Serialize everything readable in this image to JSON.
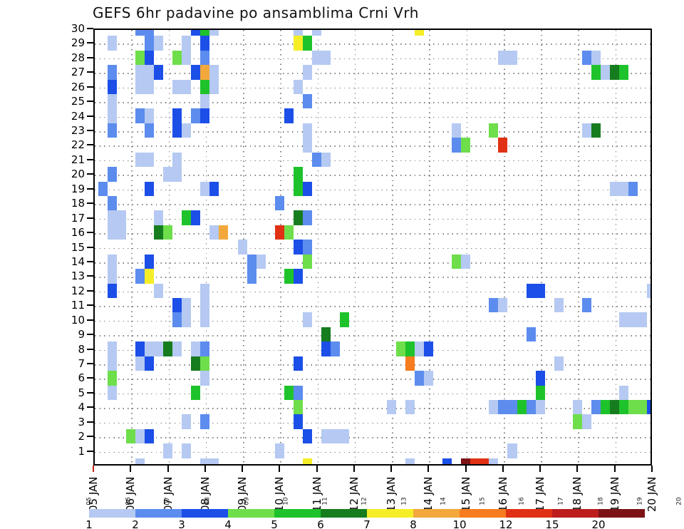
{
  "title": "GEFS 6hr padavine po ansamblima Crni Vrh",
  "y_axis": {
    "labels": [
      "1",
      "2",
      "3",
      "4",
      "5",
      "6",
      "7",
      "8",
      "9",
      "10",
      "11",
      "12",
      "13",
      "14",
      "15",
      "16",
      "17",
      "18",
      "19",
      "20",
      "21",
      "22",
      "23",
      "24",
      "25",
      "26",
      "27",
      "28",
      "29",
      "30"
    ]
  },
  "x_axis": {
    "labels": [
      "05 JAN",
      "06 JAN",
      "07 JAN",
      "08 JAN",
      "09 JAN",
      "10 JAN",
      "11 JAN",
      "12 JAN",
      "13 JAN",
      "14 JAN",
      "15 JAN",
      "16 JAN",
      "17 JAN",
      "18 JAN",
      "19 JAN",
      "20 JAN"
    ],
    "mini_labels": [
      "05",
      "06",
      "07",
      "08",
      "09",
      "10",
      "11",
      "12",
      "13",
      "14",
      "15",
      "16",
      "17",
      "18",
      "19",
      "20"
    ],
    "first_tick_color": "#cc2211"
  },
  "legend": {
    "values": [
      "1",
      "2",
      "3",
      "4",
      "5",
      "6",
      "7",
      "8",
      "10",
      "12",
      "15",
      "20"
    ],
    "colors": [
      "#b5c9f2",
      "#5c8cee",
      "#1c4fe8",
      "#6ede4b",
      "#1ec32b",
      "#167d1f",
      "#f5ee27",
      "#f3a83c",
      "#f67c1f",
      "#e03114",
      "#bd1d1d",
      "#7c1315"
    ]
  },
  "chart_data": {
    "type": "heatmap",
    "title": "GEFS 6hr padavine po ansamblima Crni Vrh",
    "x": "time, 6-hour steps, 05 JAN to 20 JAN (4 columns per day, cols 0-60)",
    "y": "ensemble member 0 (bottom, clipped) to 30 (top, clipped)",
    "value_scale_mm": [
      1,
      2,
      3,
      4,
      5,
      6,
      7,
      8,
      10,
      12,
      15,
      20
    ],
    "grid": {
      "n_cols": 61,
      "n_rows": 31,
      "days": 15,
      "gridlines": "dotted at every member row and every day"
    },
    "cells": [
      [
        30,
        5,
        2
      ],
      [
        30,
        6,
        2
      ],
      [
        30,
        11,
        3
      ],
      [
        30,
        12,
        5
      ],
      [
        30,
        13,
        1
      ],
      [
        30,
        22,
        1
      ],
      [
        30,
        24,
        1
      ],
      [
        30,
        35,
        7
      ],
      [
        29,
        2,
        1
      ],
      [
        29,
        6,
        2
      ],
      [
        29,
        7,
        1
      ],
      [
        29,
        10,
        1
      ],
      [
        29,
        12,
        3
      ],
      [
        29,
        22,
        7
      ],
      [
        29,
        23,
        5
      ],
      [
        28,
        5,
        4
      ],
      [
        28,
        6,
        3
      ],
      [
        28,
        9,
        4
      ],
      [
        28,
        10,
        1
      ],
      [
        28,
        12,
        2
      ],
      [
        28,
        24,
        1
      ],
      [
        28,
        25,
        1
      ],
      [
        28,
        44,
        1
      ],
      [
        28,
        45,
        1
      ],
      [
        28,
        53,
        2
      ],
      [
        28,
        54,
        1
      ],
      [
        27,
        2,
        2
      ],
      [
        27,
        5,
        1
      ],
      [
        27,
        6,
        1
      ],
      [
        27,
        7,
        3
      ],
      [
        27,
        11,
        3
      ],
      [
        27,
        12,
        8
      ],
      [
        27,
        13,
        1
      ],
      [
        27,
        23,
        1
      ],
      [
        27,
        54,
        5
      ],
      [
        27,
        55,
        1
      ],
      [
        27,
        56,
        6
      ],
      [
        27,
        57,
        5
      ],
      [
        26,
        2,
        3
      ],
      [
        26,
        5,
        1
      ],
      [
        26,
        6,
        1
      ],
      [
        26,
        9,
        1
      ],
      [
        26,
        10,
        1
      ],
      [
        26,
        12,
        5
      ],
      [
        26,
        13,
        1
      ],
      [
        26,
        22,
        1
      ],
      [
        25,
        2,
        1
      ],
      [
        25,
        12,
        1
      ],
      [
        25,
        23,
        2
      ],
      [
        24,
        2,
        1
      ],
      [
        24,
        5,
        2
      ],
      [
        24,
        6,
        1
      ],
      [
        24,
        9,
        3
      ],
      [
        24,
        11,
        2
      ],
      [
        24,
        12,
        3
      ],
      [
        24,
        21,
        3
      ],
      [
        23,
        2,
        2
      ],
      [
        23,
        6,
        2
      ],
      [
        23,
        9,
        3
      ],
      [
        23,
        10,
        1
      ],
      [
        23,
        23,
        1
      ],
      [
        23,
        39,
        1
      ],
      [
        23,
        43,
        4
      ],
      [
        23,
        53,
        1
      ],
      [
        23,
        54,
        6
      ],
      [
        22,
        23,
        1
      ],
      [
        22,
        39,
        2
      ],
      [
        22,
        40,
        4
      ],
      [
        22,
        44,
        10
      ],
      [
        21,
        5,
        1
      ],
      [
        21,
        6,
        1
      ],
      [
        21,
        9,
        1
      ],
      [
        21,
        24,
        2
      ],
      [
        21,
        25,
        1
      ],
      [
        20,
        2,
        2
      ],
      [
        20,
        8,
        1
      ],
      [
        20,
        9,
        1
      ],
      [
        20,
        22,
        5
      ],
      [
        19,
        1,
        2
      ],
      [
        19,
        6,
        3
      ],
      [
        19,
        12,
        1
      ],
      [
        19,
        13,
        3
      ],
      [
        19,
        22,
        5
      ],
      [
        19,
        23,
        3
      ],
      [
        19,
        56,
        1
      ],
      [
        19,
        57,
        1
      ],
      [
        19,
        58,
        2
      ],
      [
        18,
        2,
        2
      ],
      [
        18,
        20,
        2
      ],
      [
        17,
        2,
        1
      ],
      [
        17,
        3,
        1
      ],
      [
        17,
        7,
        1
      ],
      [
        17,
        10,
        5
      ],
      [
        17,
        11,
        3
      ],
      [
        17,
        22,
        6
      ],
      [
        17,
        23,
        2
      ],
      [
        16,
        2,
        1
      ],
      [
        16,
        3,
        1
      ],
      [
        16,
        7,
        6
      ],
      [
        16,
        8,
        4
      ],
      [
        16,
        13,
        1
      ],
      [
        16,
        14,
        8
      ],
      [
        16,
        20,
        10
      ],
      [
        16,
        21,
        4
      ],
      [
        15,
        16,
        1
      ],
      [
        15,
        22,
        3
      ],
      [
        15,
        23,
        2
      ],
      [
        14,
        2,
        1
      ],
      [
        14,
        6,
        3
      ],
      [
        14,
        17,
        2
      ],
      [
        14,
        18,
        1
      ],
      [
        14,
        23,
        4
      ],
      [
        14,
        39,
        4
      ],
      [
        14,
        40,
        1
      ],
      [
        13,
        2,
        1
      ],
      [
        13,
        5,
        2
      ],
      [
        13,
        6,
        7
      ],
      [
        13,
        17,
        2
      ],
      [
        13,
        21,
        5
      ],
      [
        13,
        22,
        3
      ],
      [
        12,
        2,
        3
      ],
      [
        12,
        7,
        1
      ],
      [
        12,
        12,
        1
      ],
      [
        12,
        47,
        3
      ],
      [
        12,
        48,
        3
      ],
      [
        12,
        60,
        1
      ],
      [
        11,
        9,
        3
      ],
      [
        11,
        10,
        1
      ],
      [
        11,
        12,
        1
      ],
      [
        11,
        43,
        2
      ],
      [
        11,
        44,
        1
      ],
      [
        11,
        50,
        1
      ],
      [
        11,
        53,
        2
      ],
      [
        10,
        9,
        2
      ],
      [
        10,
        10,
        1
      ],
      [
        10,
        12,
        1
      ],
      [
        10,
        23,
        1
      ],
      [
        10,
        27,
        5
      ],
      [
        10,
        57,
        1
      ],
      [
        10,
        58,
        1
      ],
      [
        10,
        59,
        1
      ],
      [
        9,
        25,
        6
      ],
      [
        9,
        47,
        2
      ],
      [
        8,
        2,
        1
      ],
      [
        8,
        5,
        3
      ],
      [
        8,
        6,
        1
      ],
      [
        8,
        7,
        1
      ],
      [
        8,
        8,
        6
      ],
      [
        8,
        9,
        1
      ],
      [
        8,
        11,
        1
      ],
      [
        8,
        12,
        2
      ],
      [
        8,
        25,
        3
      ],
      [
        8,
        26,
        2
      ],
      [
        8,
        33,
        4
      ],
      [
        8,
        34,
        5
      ],
      [
        8,
        35,
        1
      ],
      [
        8,
        36,
        3
      ],
      [
        7,
        2,
        1
      ],
      [
        7,
        5,
        1
      ],
      [
        7,
        6,
        3
      ],
      [
        7,
        11,
        6
      ],
      [
        7,
        12,
        4
      ],
      [
        7,
        22,
        3
      ],
      [
        7,
        34,
        9
      ],
      [
        7,
        50,
        1
      ],
      [
        6,
        2,
        4
      ],
      [
        6,
        12,
        1
      ],
      [
        6,
        35,
        2
      ],
      [
        6,
        36,
        1
      ],
      [
        6,
        48,
        3
      ],
      [
        5,
        2,
        1
      ],
      [
        5,
        11,
        5
      ],
      [
        5,
        21,
        5
      ],
      [
        5,
        22,
        2
      ],
      [
        5,
        48,
        5
      ],
      [
        5,
        57,
        1
      ],
      [
        4,
        22,
        4
      ],
      [
        4,
        32,
        1
      ],
      [
        4,
        34,
        1
      ],
      [
        4,
        43,
        1
      ],
      [
        4,
        44,
        2
      ],
      [
        4,
        45,
        2
      ],
      [
        4,
        46,
        5
      ],
      [
        4,
        47,
        2
      ],
      [
        4,
        48,
        1
      ],
      [
        4,
        52,
        1
      ],
      [
        4,
        54,
        2
      ],
      [
        4,
        55,
        5
      ],
      [
        4,
        56,
        6
      ],
      [
        4,
        57,
        5
      ],
      [
        4,
        58,
        4
      ],
      [
        4,
        59,
        4
      ],
      [
        4,
        60,
        3
      ],
      [
        3,
        10,
        1
      ],
      [
        3,
        12,
        2
      ],
      [
        3,
        22,
        3
      ],
      [
        3,
        52,
        4
      ],
      [
        3,
        53,
        1
      ],
      [
        2,
        4,
        4
      ],
      [
        2,
        5,
        1
      ],
      [
        2,
        6,
        3
      ],
      [
        2,
        23,
        3
      ],
      [
        2,
        25,
        1
      ],
      [
        2,
        26,
        1
      ],
      [
        2,
        27,
        1
      ],
      [
        1,
        8,
        1
      ],
      [
        1,
        10,
        1
      ],
      [
        1,
        20,
        1
      ],
      [
        1,
        45,
        1
      ],
      [
        0,
        5,
        1
      ],
      [
        0,
        12,
        1
      ],
      [
        0,
        13,
        1
      ],
      [
        0,
        23,
        7
      ],
      [
        0,
        34,
        1
      ],
      [
        0,
        38,
        3
      ],
      [
        0,
        40,
        12
      ],
      [
        0,
        41,
        10
      ],
      [
        0,
        42,
        10
      ],
      [
        0,
        43,
        1
      ]
    ]
  }
}
